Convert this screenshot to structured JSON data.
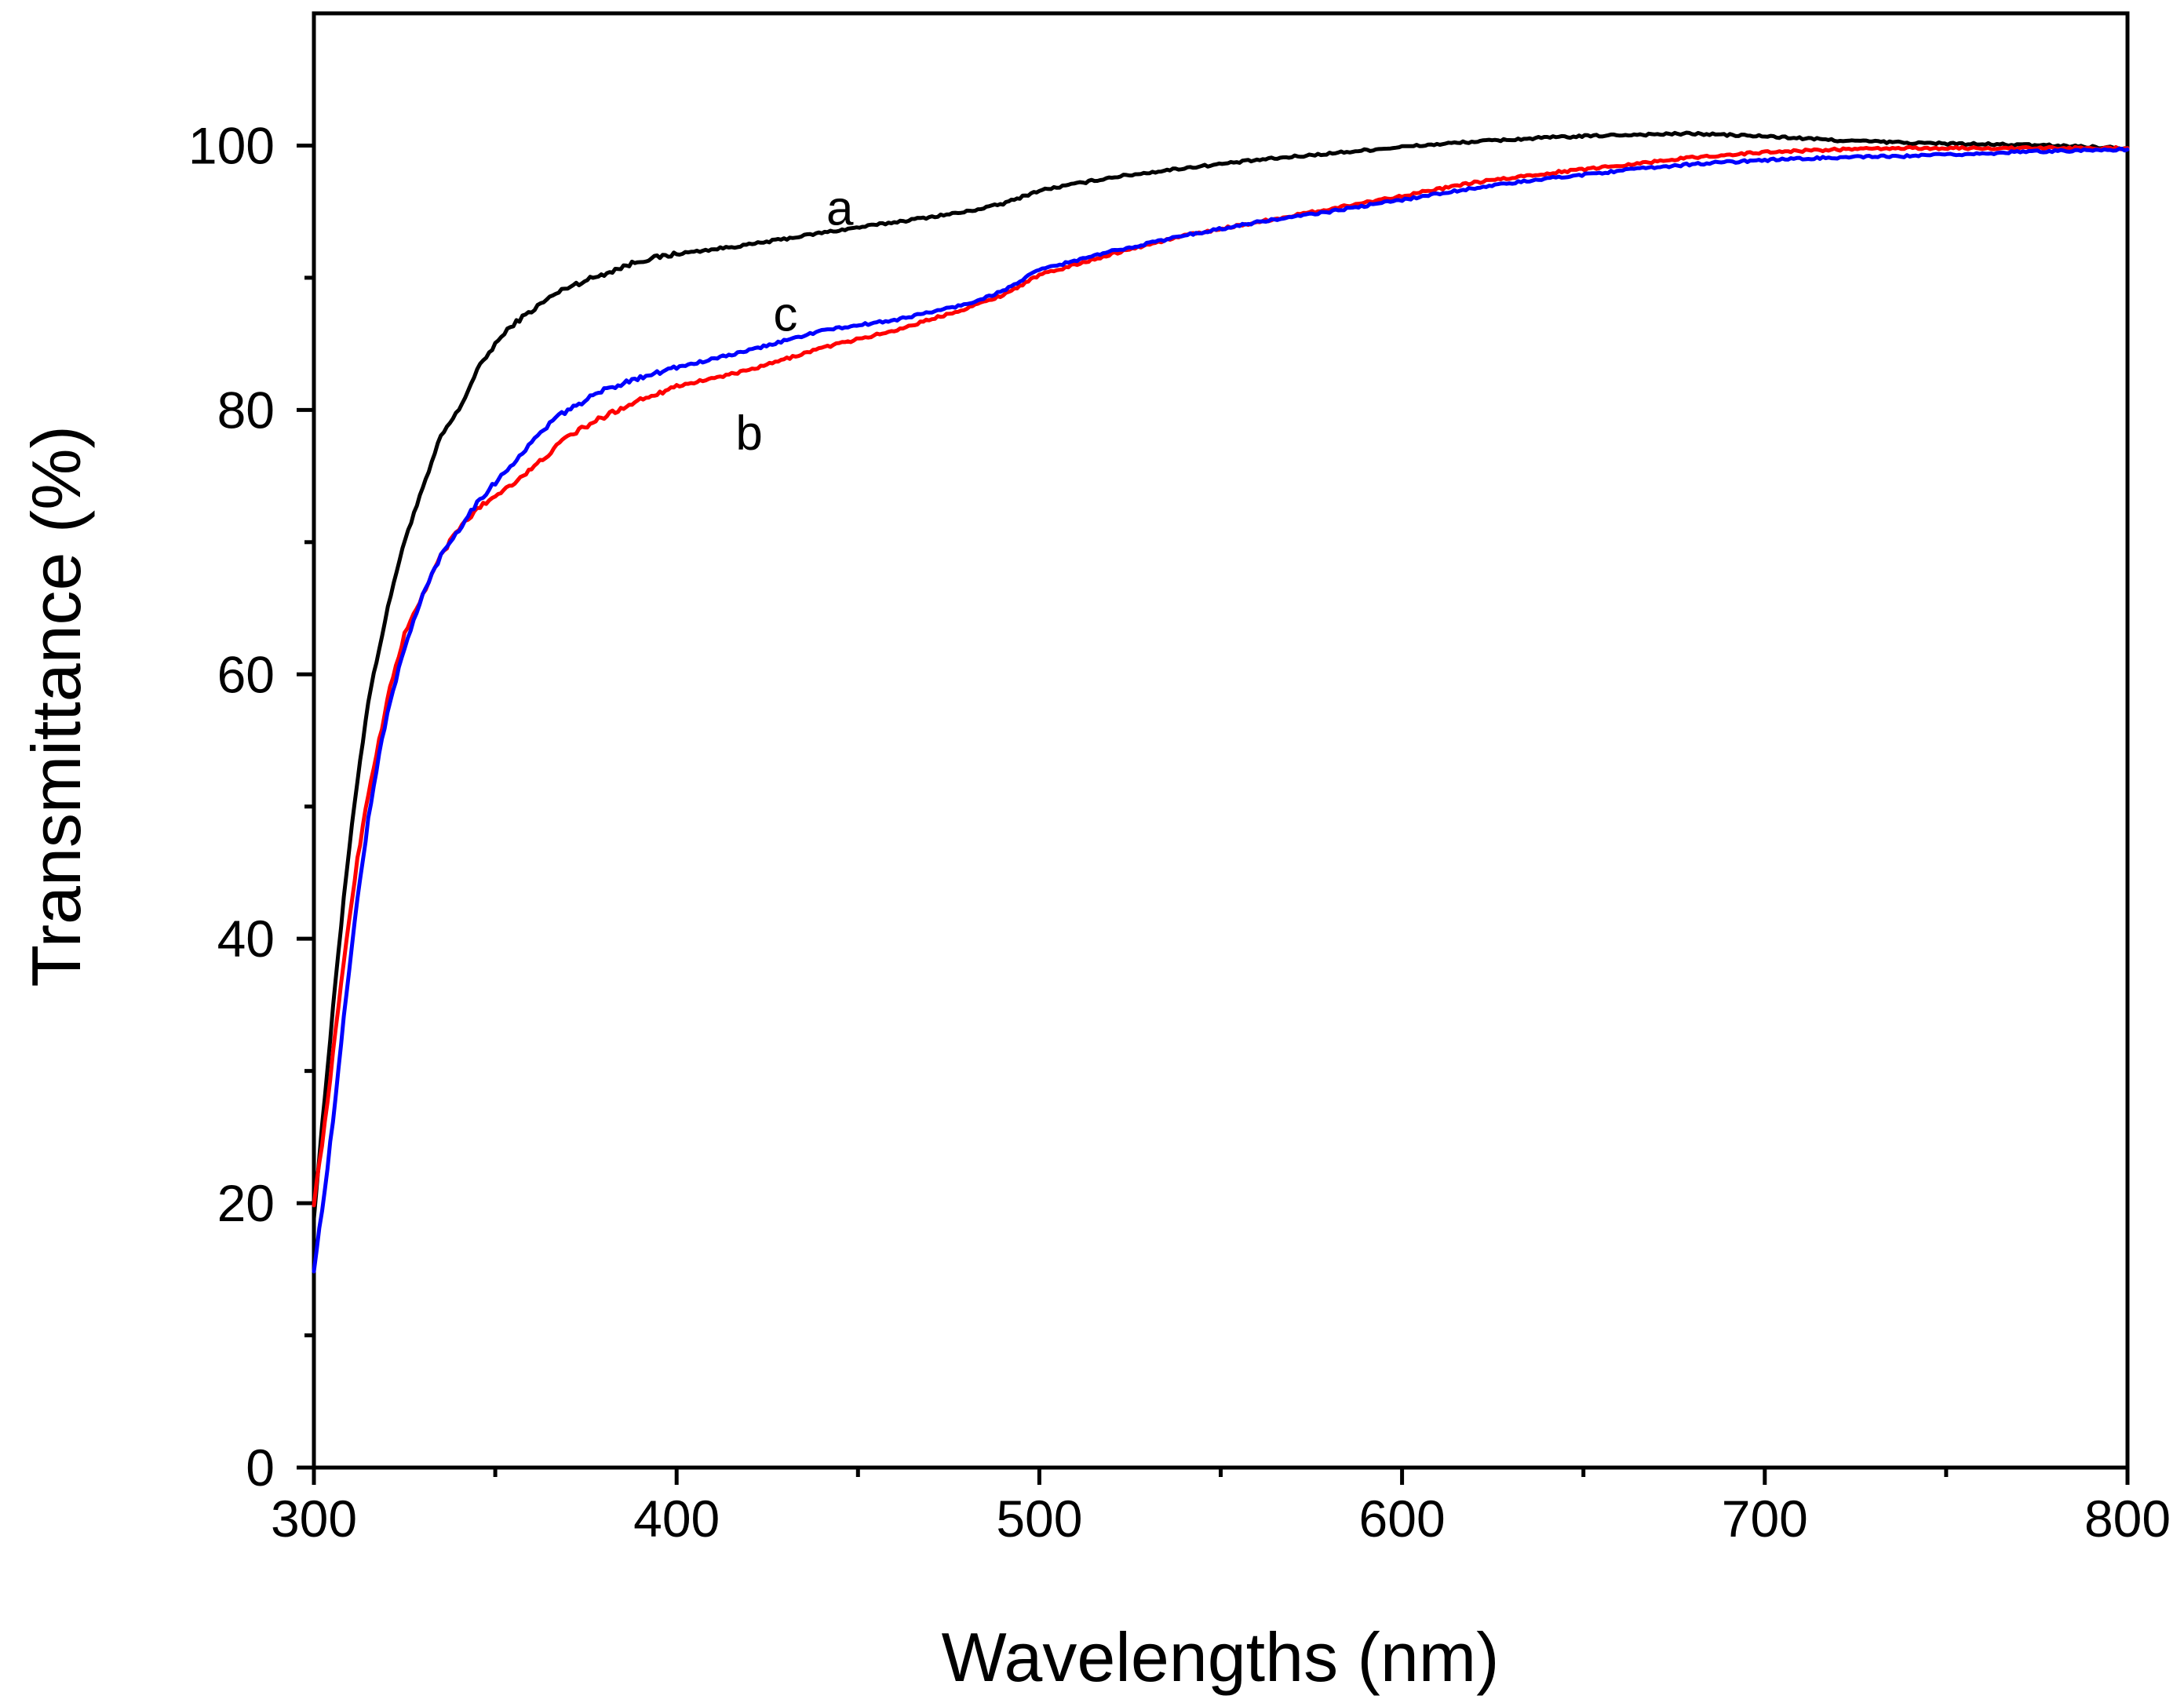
{
  "chart_data": {
    "type": "line",
    "title": "",
    "xlabel": "Wavelengths (nm)",
    "ylabel": "Transmittance (%)",
    "xlim": [
      300,
      800
    ],
    "ylim": [
      0,
      110
    ],
    "x_ticks": [
      300,
      400,
      500,
      600,
      700,
      800
    ],
    "y_ticks": [
      0,
      20,
      40,
      60,
      80,
      100
    ],
    "x_minor_step": 50,
    "y_minor_step": 10,
    "grid": false,
    "series": [
      {
        "name": "a",
        "label": "a",
        "color": "#000000",
        "label_at": [
          445,
          94
        ],
        "points": [
          [
            300,
            19
          ],
          [
            303,
            28
          ],
          [
            306,
            37
          ],
          [
            309,
            45
          ],
          [
            312,
            52
          ],
          [
            315,
            58
          ],
          [
            318,
            62
          ],
          [
            322,
            67
          ],
          [
            326,
            71
          ],
          [
            330,
            74
          ],
          [
            335,
            78
          ],
          [
            340,
            80
          ],
          [
            345,
            83
          ],
          [
            350,
            85
          ],
          [
            355,
            86.5
          ],
          [
            360,
            87.5
          ],
          [
            365,
            88.5
          ],
          [
            370,
            89.3
          ],
          [
            380,
            90.3
          ],
          [
            390,
            91.3
          ],
          [
            400,
            91.8
          ],
          [
            420,
            92.5
          ],
          [
            440,
            93.4
          ],
          [
            460,
            94.2
          ],
          [
            480,
            95
          ],
          [
            490,
            95.6
          ],
          [
            500,
            96.6
          ],
          [
            520,
            97.6
          ],
          [
            540,
            98.3
          ],
          [
            560,
            98.9
          ],
          [
            580,
            99.4
          ],
          [
            600,
            99.9
          ],
          [
            620,
            100.3
          ],
          [
            640,
            100.6
          ],
          [
            660,
            100.8
          ],
          [
            680,
            100.9
          ],
          [
            700,
            100.7
          ],
          [
            720,
            100.4
          ],
          [
            740,
            100.2
          ],
          [
            760,
            100.1
          ],
          [
            780,
            100
          ],
          [
            800,
            99.8
          ]
        ]
      },
      {
        "name": "b",
        "label": "b",
        "color": "#ff0000",
        "label_at": [
          420,
          77
        ],
        "points": [
          [
            300,
            20
          ],
          [
            303,
            26
          ],
          [
            306,
            33
          ],
          [
            309,
            40
          ],
          [
            312,
            46
          ],
          [
            315,
            51
          ],
          [
            318,
            55
          ],
          [
            321,
            59
          ],
          [
            325,
            63
          ],
          [
            330,
            66
          ],
          [
            335,
            69
          ],
          [
            340,
            71
          ],
          [
            345,
            72.5
          ],
          [
            350,
            73.5
          ],
          [
            360,
            75.5
          ],
          [
            370,
            78
          ],
          [
            380,
            79.5
          ],
          [
            390,
            80.8
          ],
          [
            400,
            81.8
          ],
          [
            420,
            83
          ],
          [
            440,
            84.7
          ],
          [
            460,
            86
          ],
          [
            480,
            87.7
          ],
          [
            490,
            88.7
          ],
          [
            500,
            90.2
          ],
          [
            520,
            91.8
          ],
          [
            540,
            93.2
          ],
          [
            560,
            94.2
          ],
          [
            580,
            95.2
          ],
          [
            600,
            96.2
          ],
          [
            620,
            97.2
          ],
          [
            640,
            97.9
          ],
          [
            660,
            98.5
          ],
          [
            680,
            99.1
          ],
          [
            700,
            99.5
          ],
          [
            720,
            99.7
          ],
          [
            740,
            99.8
          ],
          [
            760,
            99.8
          ],
          [
            780,
            99.8
          ],
          [
            800,
            99.8
          ]
        ]
      },
      {
        "name": "c",
        "label": "c",
        "color": "#0000ff",
        "label_at": [
          430,
          86
        ],
        "points": [
          [
            300,
            15
          ],
          [
            303,
            21
          ],
          [
            306,
            28
          ],
          [
            309,
            36
          ],
          [
            312,
            43
          ],
          [
            315,
            49
          ],
          [
            318,
            54
          ],
          [
            321,
            58
          ],
          [
            325,
            62
          ],
          [
            330,
            66
          ],
          [
            335,
            69
          ],
          [
            340,
            71
          ],
          [
            345,
            73
          ],
          [
            350,
            74.5
          ],
          [
            355,
            76
          ],
          [
            360,
            77.5
          ],
          [
            365,
            79
          ],
          [
            370,
            80
          ],
          [
            380,
            81.5
          ],
          [
            390,
            82.5
          ],
          [
            400,
            83.2
          ],
          [
            420,
            84.5
          ],
          [
            440,
            86
          ],
          [
            460,
            86.8
          ],
          [
            480,
            88
          ],
          [
            490,
            89
          ],
          [
            500,
            90.6
          ],
          [
            520,
            92
          ],
          [
            540,
            93.2
          ],
          [
            560,
            94.2
          ],
          [
            580,
            95
          ],
          [
            600,
            95.9
          ],
          [
            620,
            96.8
          ],
          [
            640,
            97.5
          ],
          [
            660,
            98.1
          ],
          [
            680,
            98.6
          ],
          [
            700,
            98.9
          ],
          [
            720,
            99.1
          ],
          [
            740,
            99.2
          ],
          [
            760,
            99.4
          ],
          [
            780,
            99.6
          ],
          [
            800,
            99.7
          ]
        ]
      }
    ]
  }
}
